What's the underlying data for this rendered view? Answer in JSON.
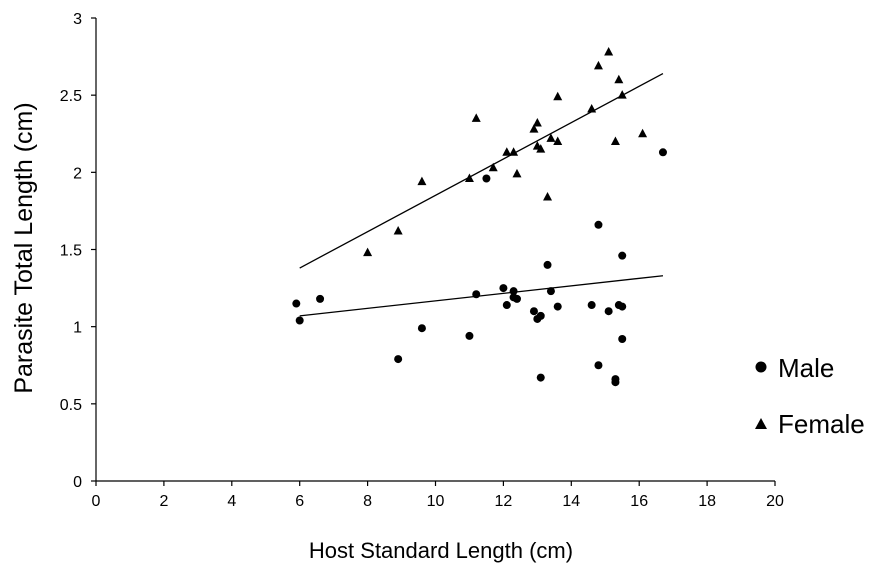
{
  "chart_data": {
    "type": "scatter",
    "xlabel": "Host Standard Length (cm)",
    "ylabel": "Parasite Total Length (cm)",
    "xlim": [
      0,
      20
    ],
    "ylim": [
      0,
      3
    ],
    "x_ticks": [
      "0",
      "2",
      "4",
      "6",
      "8",
      "10",
      "12",
      "14",
      "16",
      "18",
      "20"
    ],
    "y_ticks": [
      "0",
      "0.5",
      "1",
      "1.5",
      "2",
      "2.5",
      "3"
    ],
    "grid": false,
    "legend_position": "right",
    "series": [
      {
        "name": "Male",
        "marker": "circle",
        "points": [
          [
            5.9,
            1.15
          ],
          [
            6.0,
            1.04
          ],
          [
            6.6,
            1.18
          ],
          [
            8.9,
            0.79
          ],
          [
            9.6,
            0.99
          ],
          [
            11.0,
            0.94
          ],
          [
            11.2,
            1.21
          ],
          [
            11.5,
            1.96
          ],
          [
            12.0,
            1.25
          ],
          [
            12.1,
            1.14
          ],
          [
            12.3,
            1.23
          ],
          [
            12.3,
            1.19
          ],
          [
            12.4,
            1.18
          ],
          [
            12.9,
            1.1
          ],
          [
            13.0,
            1.05
          ],
          [
            13.1,
            1.07
          ],
          [
            13.1,
            0.67
          ],
          [
            13.3,
            1.4
          ],
          [
            13.4,
            1.23
          ],
          [
            13.6,
            1.13
          ],
          [
            14.6,
            1.14
          ],
          [
            14.8,
            1.66
          ],
          [
            14.8,
            0.75
          ],
          [
            15.1,
            1.1
          ],
          [
            15.3,
            0.66
          ],
          [
            15.3,
            0.64
          ],
          [
            15.4,
            1.14
          ],
          [
            15.5,
            1.13
          ],
          [
            15.5,
            1.46
          ],
          [
            15.5,
            0.92
          ],
          [
            16.7,
            2.13
          ]
        ],
        "trendline": [
          [
            6.0,
            1.07
          ],
          [
            16.7,
            1.33
          ]
        ]
      },
      {
        "name": "Female",
        "marker": "triangle",
        "points": [
          [
            8.0,
            1.48
          ],
          [
            8.9,
            1.62
          ],
          [
            9.6,
            1.94
          ],
          [
            11.0,
            1.96
          ],
          [
            11.2,
            2.35
          ],
          [
            11.7,
            2.03
          ],
          [
            12.1,
            2.13
          ],
          [
            12.3,
            2.13
          ],
          [
            12.4,
            1.99
          ],
          [
            12.9,
            2.28
          ],
          [
            13.0,
            2.17
          ],
          [
            13.0,
            2.32
          ],
          [
            13.1,
            2.15
          ],
          [
            13.3,
            1.84
          ],
          [
            13.4,
            2.22
          ],
          [
            13.6,
            2.2
          ],
          [
            13.6,
            2.49
          ],
          [
            14.6,
            2.41
          ],
          [
            14.8,
            2.69
          ],
          [
            15.1,
            2.78
          ],
          [
            15.3,
            2.2
          ],
          [
            15.4,
            2.6
          ],
          [
            15.5,
            2.5
          ],
          [
            16.1,
            2.25
          ]
        ],
        "trendline": [
          [
            6.0,
            1.38
          ],
          [
            16.7,
            2.64
          ]
        ]
      }
    ]
  }
}
